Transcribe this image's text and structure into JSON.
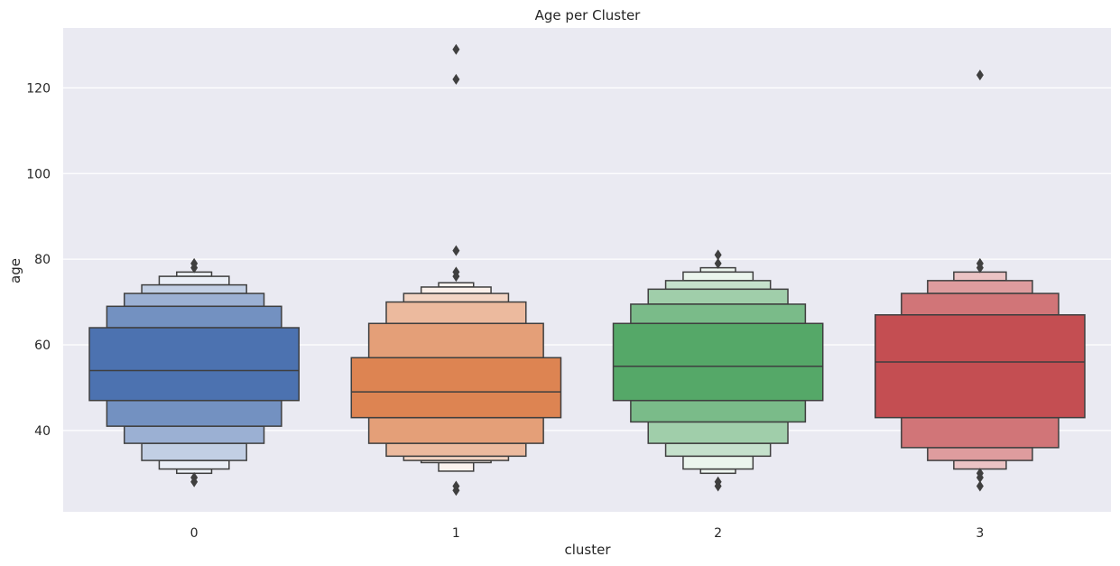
{
  "chart_data": {
    "type": "boxen",
    "title": "Age per Cluster",
    "xlabel": "cluster",
    "ylabel": "age",
    "categories": [
      "0",
      "1",
      "2",
      "3"
    ],
    "ylim": [
      21,
      134
    ],
    "yticks": [
      40,
      60,
      80,
      100,
      120
    ],
    "grid": true,
    "legend": "none",
    "series": [
      {
        "category": "0",
        "color": "#4c72b0",
        "median": 54,
        "boxes": [
          [
            47,
            64
          ],
          [
            41,
            69
          ],
          [
            37,
            72
          ],
          [
            33,
            74
          ],
          [
            31,
            76
          ],
          [
            30,
            77
          ]
        ],
        "outliers": [
          28,
          29,
          78,
          79
        ]
      },
      {
        "category": "1",
        "color": "#dd8452",
        "median": 49,
        "boxes": [
          [
            43,
            57
          ],
          [
            37,
            65
          ],
          [
            34,
            70
          ],
          [
            33,
            72
          ],
          [
            32.5,
            73.5
          ],
          [
            30.5,
            74.5
          ]
        ],
        "outliers": [
          26,
          27,
          76,
          77,
          82,
          122,
          129
        ]
      },
      {
        "category": "2",
        "color": "#55a868",
        "median": 55,
        "boxes": [
          [
            47,
            65
          ],
          [
            42,
            69.5
          ],
          [
            37,
            73
          ],
          [
            34,
            75
          ],
          [
            31,
            77
          ],
          [
            30,
            78
          ]
        ],
        "outliers": [
          27,
          28,
          79,
          81
        ]
      },
      {
        "category": "3",
        "color": "#c44e52",
        "median": 56,
        "boxes": [
          [
            43,
            67
          ],
          [
            36,
            72
          ],
          [
            33,
            75
          ],
          [
            31,
            77
          ]
        ],
        "outliers": [
          27,
          29,
          30,
          78,
          79,
          123
        ]
      }
    ]
  }
}
